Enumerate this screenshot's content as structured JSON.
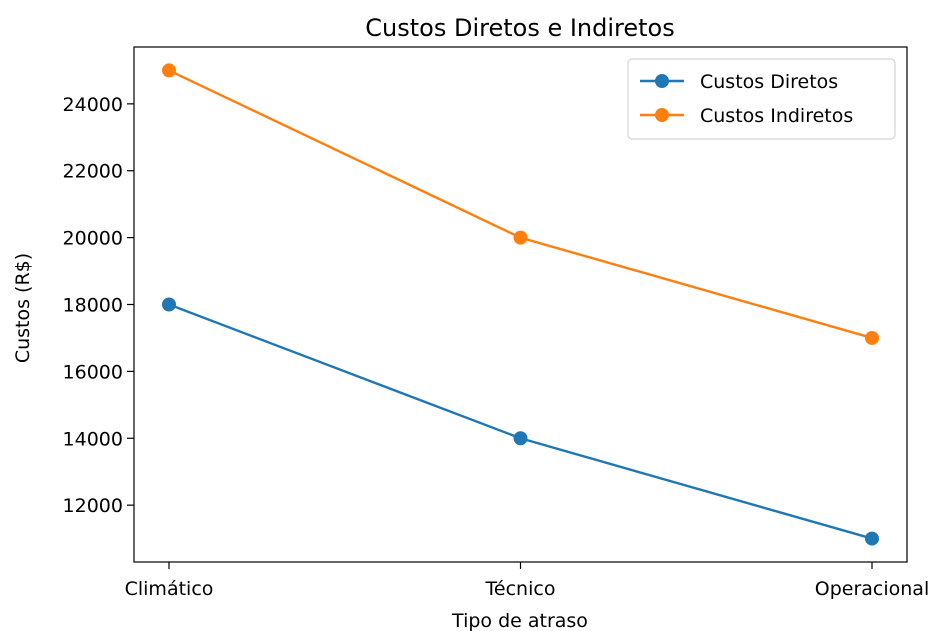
{
  "chart_data": {
    "type": "line",
    "title": "Custos Diretos e Indiretos",
    "xlabel": "Tipo de atraso",
    "ylabel": "Custos (R$)",
    "categories": [
      "Climático",
      "Técnico",
      "Operacional"
    ],
    "series": [
      {
        "name": "Custos Diretos",
        "values": [
          18000,
          14000,
          11000
        ],
        "color": "#1f77b4"
      },
      {
        "name": "Custos Indiretos",
        "values": [
          25000,
          20000,
          17000
        ],
        "color": "#ff7f0e"
      }
    ],
    "yticks": [
      12000,
      14000,
      16000,
      18000,
      20000,
      22000,
      24000
    ],
    "ylim": [
      10300,
      25700
    ],
    "grid": false,
    "legend_position": "top-right",
    "marker": "circle"
  }
}
